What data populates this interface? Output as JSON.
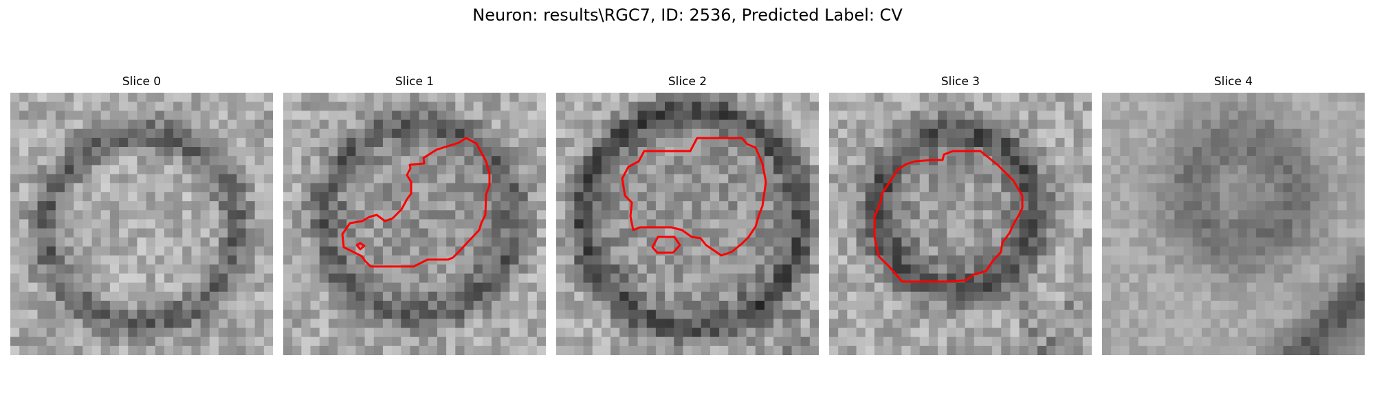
{
  "figure": {
    "title": "Neuron: results\\RGC7, ID: 2536, Predicted Label: CV"
  },
  "colors": {
    "contour": "#ff0000",
    "background": "#ffffff"
  },
  "panels": [
    {
      "title": "Slice 0",
      "has_contour": false
    },
    {
      "title": "Slice 1",
      "has_contour": true
    },
    {
      "title": "Slice 2",
      "has_contour": true
    },
    {
      "title": "Slice 3",
      "has_contour": true
    },
    {
      "title": "Slice 4",
      "has_contour": false
    }
  ]
}
